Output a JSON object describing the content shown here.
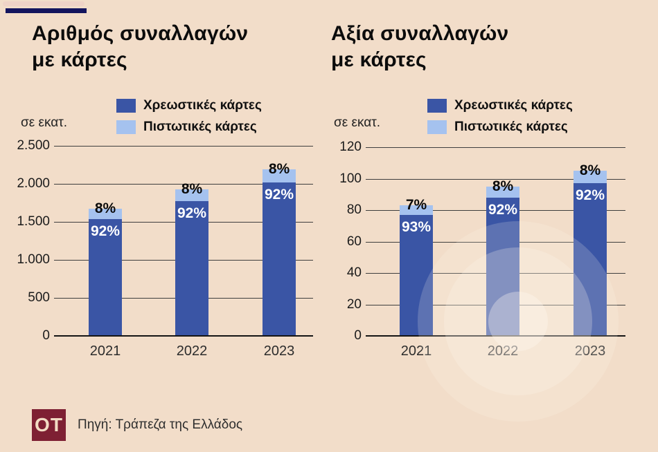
{
  "page": {
    "background": "#f2ddc9"
  },
  "header": {
    "accent_bar_color": "#14155e"
  },
  "chart_data": [
    {
      "type": "bar",
      "stacked": true,
      "title": "Αριθμός συναλλαγών\nμε κάρτες",
      "unit": "σε εκατ.",
      "categories": [
        "2021",
        "2022",
        "2023"
      ],
      "series": [
        {
          "name": "Χρεωστικές κάρτες",
          "color": "#3a55a5",
          "values": [
            1540,
            1775,
            2015
          ],
          "pct_labels": [
            "92%",
            "92%",
            "92%"
          ]
        },
        {
          "name": "Πιστωτικές κάρτες",
          "color": "#a5c2ef",
          "values": [
            130,
            155,
            175
          ],
          "pct_labels": [
            "8%",
            "8%",
            "8%"
          ]
        }
      ],
      "totals": [
        1670,
        1930,
        2190
      ],
      "ylim": [
        0,
        2500
      ],
      "yticks": [
        {
          "value": 0,
          "label": "0"
        },
        {
          "value": 500,
          "label": "500"
        },
        {
          "value": 1000,
          "label": "1.000"
        },
        {
          "value": 1500,
          "label": "1.500"
        },
        {
          "value": 2000,
          "label": "2.000"
        },
        {
          "value": 2500,
          "label": "2.500"
        }
      ],
      "grid": true,
      "legend_position": "top"
    },
    {
      "type": "bar",
      "stacked": true,
      "title": "Αξία συναλλαγών\nμε κάρτες",
      "unit": "σε εκατ.",
      "categories": [
        "2021",
        "2022",
        "2023"
      ],
      "series": [
        {
          "name": "Χρεωστικές κάρτες",
          "color": "#3a55a5",
          "values": [
            77,
            88,
            97
          ],
          "pct_labels": [
            "93%",
            "92%",
            "92%"
          ]
        },
        {
          "name": "Πιστωτικές κάρτες",
          "color": "#a5c2ef",
          "values": [
            6,
            7,
            8
          ],
          "pct_labels": [
            "7%",
            "8%",
            "8%"
          ]
        }
      ],
      "totals": [
        83,
        95,
        105
      ],
      "ylim": [
        0,
        120
      ],
      "yticks": [
        {
          "value": 0,
          "label": "0"
        },
        {
          "value": 20,
          "label": "20"
        },
        {
          "value": 40,
          "label": "40"
        },
        {
          "value": 60,
          "label": "60"
        },
        {
          "value": 80,
          "label": "80"
        },
        {
          "value": 100,
          "label": "100"
        },
        {
          "value": 120,
          "label": "120"
        }
      ],
      "grid": true,
      "legend_position": "top"
    }
  ],
  "footer": {
    "logo_text": "OT",
    "logo_color": "#7e2033",
    "source": "Πηγή: Τράπεζα της Ελλάδος"
  }
}
